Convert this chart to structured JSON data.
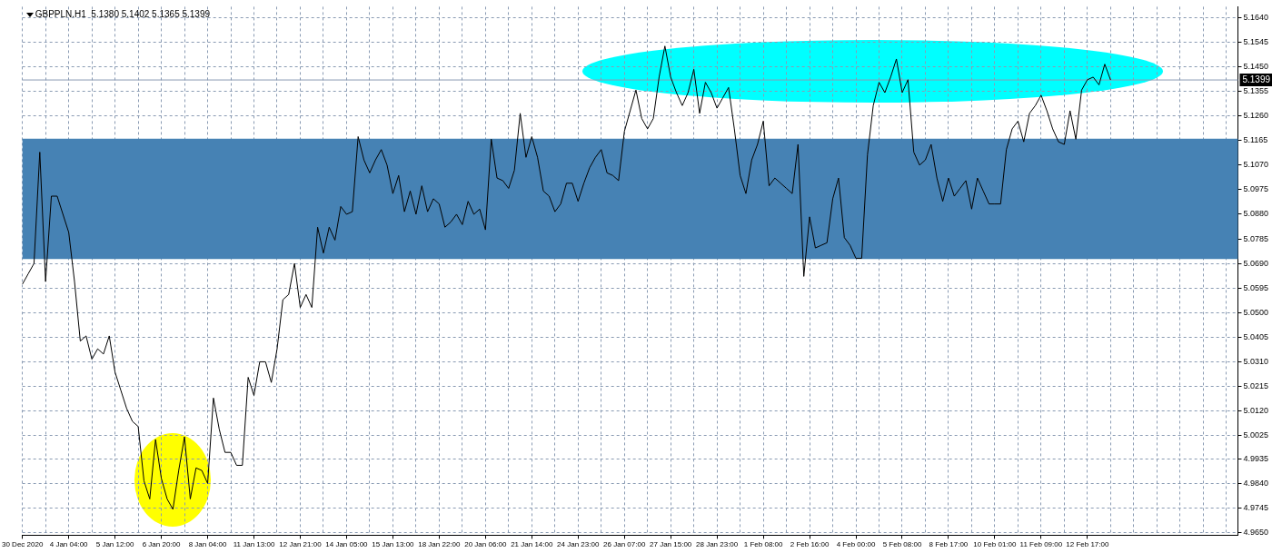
{
  "chart_data": {
    "type": "line",
    "title": "GBPPLN.H1  5.1380 5.1402 5.1365 5.1399",
    "categories": [
      "30 Dec 2020",
      null,
      null,
      null,
      null,
      null,
      null,
      null,
      "4 Jan 04:00",
      null,
      null,
      null,
      null,
      null,
      null,
      null,
      "5 Jan 12:00",
      null,
      null,
      null,
      null,
      null,
      null,
      null,
      "6 Jan 20:00",
      null,
      null,
      null,
      null,
      null,
      null,
      null,
      "8 Jan 04:00",
      null,
      null,
      null,
      null,
      null,
      null,
      null,
      "11 Jan 13:00",
      null,
      null,
      null,
      null,
      null,
      null,
      null,
      "12 Jan 21:00",
      null,
      null,
      null,
      null,
      null,
      null,
      null,
      "14 Jan 05:00",
      null,
      null,
      null,
      null,
      null,
      null,
      null,
      "15 Jan 13:00",
      null,
      null,
      null,
      null,
      null,
      null,
      null,
      "18 Jan 22:00",
      null,
      null,
      null,
      null,
      null,
      null,
      null,
      "20 Jan 06:00",
      null,
      null,
      null,
      null,
      null,
      null,
      null,
      "21 Jan 14:00",
      null,
      null,
      null,
      null,
      null,
      null,
      null,
      "24 Jan 23:00",
      null,
      null,
      null,
      null,
      null,
      null,
      null,
      "26 Jan 07:00",
      null,
      null,
      null,
      null,
      null,
      null,
      null,
      "27 Jan 15:00",
      null,
      null,
      null,
      null,
      null,
      null,
      null,
      "28 Jan 23:00",
      null,
      null,
      null,
      null,
      null,
      null,
      null,
      "1 Feb 08:00",
      null,
      null,
      null,
      null,
      null,
      null,
      null,
      "2 Feb 16:00",
      null,
      null,
      null,
      null,
      null,
      null,
      null,
      "4 Feb 00:00",
      null,
      null,
      null,
      null,
      null,
      null,
      null,
      "5 Feb 08:00",
      null,
      null,
      null,
      null,
      null,
      null,
      null,
      "8 Feb 17:00",
      null,
      null,
      null,
      null,
      null,
      null,
      null,
      "10 Feb 01:00",
      null,
      null,
      null,
      null,
      null,
      null,
      null,
      "11 Feb 09:00",
      null,
      null,
      null,
      null,
      null,
      null,
      null,
      "12 Feb 17:00",
      null,
      null,
      null,
      null,
      null,
      null,
      null,
      null,
      null,
      null,
      null,
      null,
      null,
      null,
      null,
      null,
      null,
      null,
      null,
      null,
      null,
      null,
      null,
      null,
      null,
      null
    ],
    "series": [
      {
        "color": "#000000",
        "values": [
          5.061,
          5.065,
          5.069,
          5.112,
          5.062,
          5.095,
          5.095,
          5.088,
          5.081,
          5.062,
          5.039,
          5.041,
          5.032,
          5.036,
          5.034,
          5.041,
          5.027,
          5.02,
          5.013,
          5.008,
          5.006,
          4.985,
          4.978,
          5.001,
          4.986,
          4.978,
          4.974,
          4.989,
          5.002,
          4.978,
          4.99,
          4.989,
          4.984,
          5.017,
          5.005,
          4.996,
          4.996,
          4.991,
          4.991,
          5.025,
          5.018,
          5.031,
          5.031,
          5.023,
          5.036,
          5.055,
          5.057,
          5.069,
          5.052,
          5.057,
          5.052,
          5.083,
          5.073,
          5.083,
          5.078,
          5.091,
          5.088,
          5.089,
          5.118,
          5.109,
          5.104,
          5.109,
          5.113,
          5.107,
          5.096,
          5.103,
          5.089,
          5.097,
          5.088,
          5.099,
          5.089,
          5.094,
          5.092,
          5.083,
          5.085,
          5.088,
          5.084,
          5.093,
          5.088,
          5.09,
          5.082,
          5.117,
          5.102,
          5.101,
          5.098,
          5.105,
          5.127,
          5.11,
          5.118,
          5.11,
          5.097,
          5.095,
          5.089,
          5.092,
          5.1,
          5.1,
          5.093,
          5.1,
          5.106,
          5.11,
          5.113,
          5.104,
          5.103,
          5.101,
          5.12,
          5.128,
          5.136,
          5.125,
          5.121,
          5.125,
          5.141,
          5.153,
          5.141,
          5.135,
          5.13,
          5.135,
          5.144,
          5.127,
          5.139,
          5.135,
          5.129,
          5.133,
          5.137,
          5.121,
          5.103,
          5.096,
          5.109,
          5.115,
          5.124,
          5.099,
          5.102,
          5.1,
          5.098,
          5.096,
          5.115,
          5.064,
          5.087,
          5.075,
          5.076,
          5.077,
          5.094,
          5.102,
          5.079,
          5.076,
          5.071,
          5.071,
          5.111,
          5.13,
          5.139,
          5.135,
          5.141,
          5.148,
          5.135,
          5.14,
          5.112,
          5.107,
          5.109,
          5.115,
          5.102,
          5.093,
          5.102,
          5.095,
          5.098,
          5.101,
          5.09,
          5.102,
          5.097,
          5.092,
          5.092,
          5.092,
          5.113,
          5.121,
          5.124,
          5.116,
          5.127,
          5.13,
          5.134,
          5.128,
          5.121,
          5.116,
          5.115,
          5.128,
          5.117,
          5.136,
          5.14,
          5.141,
          5.138,
          5.146,
          5.1399,
          null,
          null,
          null,
          null,
          null,
          null,
          null,
          null,
          null,
          null,
          null,
          null,
          null,
          null,
          null,
          null,
          null,
          null,
          null,
          null,
          null,
          null
        ]
      }
    ],
    "ylim": [
      4.964,
      5.1682
    ],
    "yticks": [
      {
        "value": 4.965,
        "label": "4.9650"
      },
      {
        "value": 4.9745,
        "label": "4.9745"
      },
      {
        "value": 4.984,
        "label": "4.9840"
      },
      {
        "value": 4.9935,
        "label": "4.9935"
      },
      {
        "value": 5.0025,
        "label": "5.0025"
      },
      {
        "value": 5.012,
        "label": "5.0120"
      },
      {
        "value": 5.0215,
        "label": "5.0215"
      },
      {
        "value": 5.031,
        "label": "5.0310"
      },
      {
        "value": 5.0405,
        "label": "5.0405"
      },
      {
        "value": 5.05,
        "label": "5.0500"
      },
      {
        "value": 5.0595,
        "label": "5.0595"
      },
      {
        "value": 5.069,
        "label": "5.0690"
      },
      {
        "value": 5.0785,
        "label": "5.0785"
      },
      {
        "value": 5.088,
        "label": "5.0880"
      },
      {
        "value": 5.0975,
        "label": "5.0975"
      },
      {
        "value": 5.107,
        "label": "5.1070"
      },
      {
        "value": 5.1165,
        "label": "5.1165"
      },
      {
        "value": 5.126,
        "label": "5.1260"
      },
      {
        "value": 5.1355,
        "label": "5.1355"
      },
      {
        "value": 5.145,
        "label": "5.1450"
      },
      {
        "value": 5.1545,
        "label": "5.1545"
      },
      {
        "value": 5.164,
        "label": "5.1640"
      }
    ],
    "ref_lines": [
      {
        "axis": "y",
        "value": 5.1399,
        "label": "5.1399",
        "color": "#8a9bb3"
      }
    ],
    "bands": [
      {
        "axis": "y",
        "from": 5.0707,
        "to": 5.1172,
        "color": "#4682b4"
      }
    ],
    "grid": true,
    "marker": "none",
    "line_style": "solid",
    "legend": false
  }
}
